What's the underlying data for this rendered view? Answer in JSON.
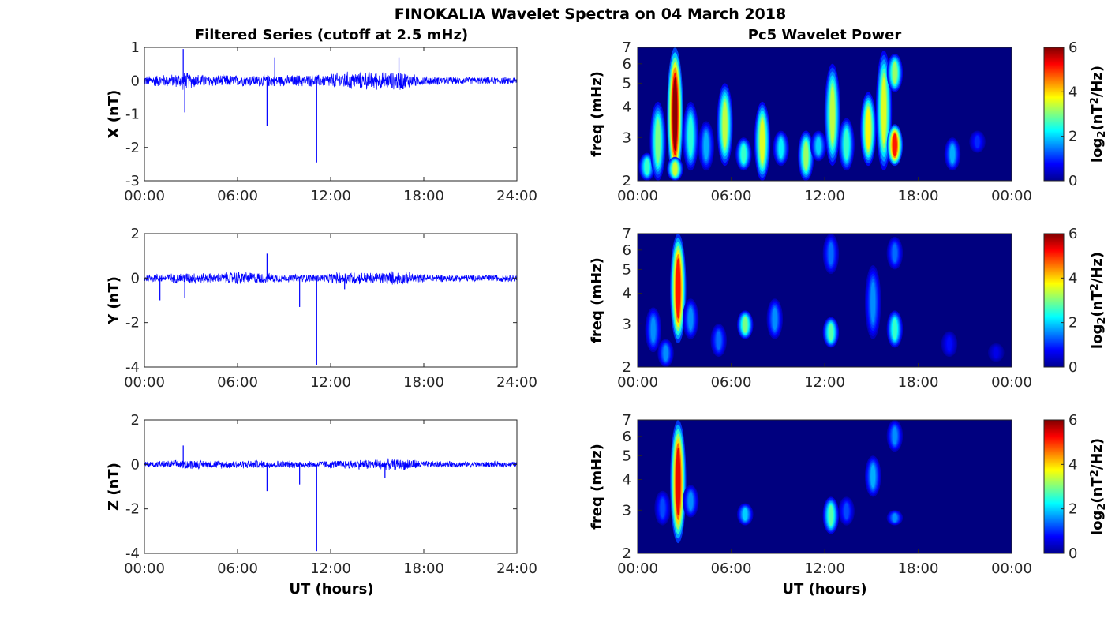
{
  "figure": {
    "title": "FINOKALIA Wavelet Spectra on 04 March 2018",
    "left_title": "Filtered Series (cutoff at 2.5 mHz)",
    "right_title": "Pc5 Wavelet Power",
    "xlabel": "UT (hours)"
  },
  "colormap": {
    "name": "jet",
    "stops": [
      "#00008f",
      "#0000ff",
      "#0080ff",
      "#00ffff",
      "#80ff80",
      "#ffff00",
      "#ff8000",
      "#ff0000",
      "#800000"
    ],
    "background": "#00007f"
  },
  "chart_data": [
    {
      "type": "line",
      "panel": "X",
      "ylabel": "X (nT)",
      "xlim": [
        0,
        24
      ],
      "ylim": [
        -3,
        1
      ],
      "xticks": [
        "00:00",
        "06:00",
        "12:00",
        "18:00",
        "24:00"
      ],
      "yticks": [
        1,
        0,
        -1,
        -2,
        -3
      ],
      "color": "#0000ff",
      "noise_envelope": {
        "x": [
          0,
          1,
          2,
          2.5,
          3,
          4,
          5,
          6,
          7,
          8,
          9,
          10,
          11,
          11.5,
          12,
          13,
          14,
          15,
          16,
          16.5,
          17,
          18,
          19,
          20,
          21,
          22,
          23,
          24
        ],
        "amplitude": [
          0.18,
          0.2,
          0.22,
          0.3,
          0.25,
          0.2,
          0.2,
          0.18,
          0.2,
          0.2,
          0.18,
          0.2,
          0.2,
          0.2,
          0.25,
          0.3,
          0.3,
          0.3,
          0.28,
          0.35,
          0.25,
          0.15,
          0.14,
          0.13,
          0.12,
          0.12,
          0.12,
          0.12
        ]
      },
      "spikes": [
        {
          "x": 2.5,
          "y": 0.95
        },
        {
          "x": 2.6,
          "y": -0.95
        },
        {
          "x": 7.9,
          "y": -1.35
        },
        {
          "x": 8.4,
          "y": 0.7
        },
        {
          "x": 11.1,
          "y": -2.45
        },
        {
          "x": 16.4,
          "y": 0.7
        }
      ]
    },
    {
      "type": "line",
      "panel": "Y",
      "ylabel": "Y (nT)",
      "xlim": [
        0,
        24
      ],
      "ylim": [
        -4,
        2
      ],
      "xticks": [
        "00:00",
        "06:00",
        "12:00",
        "18:00",
        "24:00"
      ],
      "yticks": [
        2,
        0,
        -2,
        -4
      ],
      "color": "#0000ff",
      "noise_envelope": {
        "x": [
          0,
          2,
          3,
          4,
          5,
          6,
          7,
          8,
          9,
          10,
          11,
          12,
          13,
          14,
          15,
          16,
          17,
          18,
          20,
          22,
          24
        ],
        "amplitude": [
          0.2,
          0.25,
          0.3,
          0.25,
          0.25,
          0.35,
          0.3,
          0.25,
          0.2,
          0.2,
          0.2,
          0.25,
          0.35,
          0.3,
          0.3,
          0.35,
          0.3,
          0.2,
          0.18,
          0.18,
          0.18
        ]
      },
      "spikes": [
        {
          "x": 1.0,
          "y": -1.0
        },
        {
          "x": 2.6,
          "y": -0.9
        },
        {
          "x": 7.9,
          "y": 1.1
        },
        {
          "x": 10.0,
          "y": -1.3
        },
        {
          "x": 11.1,
          "y": -3.9
        },
        {
          "x": 12.9,
          "y": -0.5
        }
      ]
    },
    {
      "type": "line",
      "panel": "Z",
      "ylabel": "Z (nT)",
      "xlim": [
        0,
        24
      ],
      "ylim": [
        -4,
        2
      ],
      "xticks": [
        "00:00",
        "06:00",
        "12:00",
        "18:00",
        "24:00"
      ],
      "yticks": [
        2,
        0,
        -2,
        -4
      ],
      "color": "#0000ff",
      "noise_envelope": {
        "x": [
          0,
          2,
          3,
          4,
          6,
          8,
          10,
          12,
          14,
          16,
          17,
          18,
          20,
          22,
          24
        ],
        "amplitude": [
          0.15,
          0.2,
          0.25,
          0.2,
          0.2,
          0.2,
          0.18,
          0.2,
          0.25,
          0.28,
          0.3,
          0.18,
          0.15,
          0.15,
          0.15
        ]
      },
      "spikes": [
        {
          "x": 2.5,
          "y": 0.85
        },
        {
          "x": 7.9,
          "y": -1.2
        },
        {
          "x": 10.0,
          "y": -0.9
        },
        {
          "x": 11.1,
          "y": -3.9
        },
        {
          "x": 15.5,
          "y": -0.6
        }
      ]
    },
    {
      "type": "heatmap",
      "panel": "X",
      "ylabel": "freq (mHz)",
      "xlim": [
        0,
        24
      ],
      "ylim": [
        2,
        7
      ],
      "yscale": "log",
      "xticks": [
        "00:00",
        "06:00",
        "12:00",
        "18:00",
        "00:00"
      ],
      "yticks": [
        7,
        6,
        5,
        4,
        3,
        2
      ],
      "colorbar": {
        "label": "log2(nT2/Hz)",
        "range": [
          0,
          6
        ],
        "ticks": [
          6,
          4,
          2,
          0
        ]
      },
      "blobs": [
        {
          "t": 0.6,
          "f_low": 2.0,
          "f_high": 2.6,
          "peak": 2.6
        },
        {
          "t": 1.3,
          "f_low": 2.0,
          "f_high": 4.2,
          "peak": 3.0
        },
        {
          "t": 2.4,
          "f_low": 2.0,
          "f_high": 7.0,
          "peak": 6.0
        },
        {
          "t": 2.4,
          "f_low": 2.0,
          "f_high": 2.5,
          "peak": 3.5
        },
        {
          "t": 3.4,
          "f_low": 2.2,
          "f_high": 4.2,
          "peak": 2.5
        },
        {
          "t": 4.4,
          "f_low": 2.2,
          "f_high": 3.5,
          "peak": 1.8
        },
        {
          "t": 5.6,
          "f_low": 2.3,
          "f_high": 5.0,
          "peak": 3.4
        },
        {
          "t": 6.8,
          "f_low": 2.2,
          "f_high": 3.0,
          "peak": 2.6
        },
        {
          "t": 8.0,
          "f_low": 2.0,
          "f_high": 4.2,
          "peak": 3.6
        },
        {
          "t": 9.2,
          "f_low": 2.3,
          "f_high": 3.2,
          "peak": 2.2
        },
        {
          "t": 10.8,
          "f_low": 2.0,
          "f_high": 3.2,
          "peak": 3.2
        },
        {
          "t": 11.6,
          "f_low": 2.4,
          "f_high": 3.2,
          "peak": 2.0
        },
        {
          "t": 12.5,
          "f_low": 2.3,
          "f_high": 6.0,
          "peak": 3.4
        },
        {
          "t": 13.4,
          "f_low": 2.2,
          "f_high": 3.6,
          "peak": 2.6
        },
        {
          "t": 14.8,
          "f_low": 2.3,
          "f_high": 4.6,
          "peak": 3.8
        },
        {
          "t": 15.8,
          "f_low": 2.2,
          "f_high": 6.8,
          "peak": 3.6
        },
        {
          "t": 16.5,
          "f_low": 2.3,
          "f_high": 3.4,
          "peak": 5.2
        },
        {
          "t": 16.5,
          "f_low": 4.6,
          "f_high": 6.6,
          "peak": 3.2
        },
        {
          "t": 20.2,
          "f_low": 2.2,
          "f_high": 3.0,
          "peak": 1.8
        },
        {
          "t": 21.8,
          "f_low": 2.6,
          "f_high": 3.2,
          "peak": 1.0
        }
      ]
    },
    {
      "type": "heatmap",
      "panel": "Y",
      "ylabel": "freq (mHz)",
      "xlim": [
        0,
        24
      ],
      "ylim": [
        2,
        7
      ],
      "yscale": "log",
      "xticks": [
        "00:00",
        "06:00",
        "12:00",
        "18:00",
        "00:00"
      ],
      "yticks": [
        7,
        6,
        5,
        4,
        3,
        2
      ],
      "colorbar": {
        "label": "log2(nT2/Hz)",
        "range": [
          0,
          6
        ],
        "ticks": [
          6,
          4,
          2,
          0
        ]
      },
      "blobs": [
        {
          "t": 1.0,
          "f_low": 2.3,
          "f_high": 3.5,
          "peak": 1.6
        },
        {
          "t": 1.8,
          "f_low": 2.0,
          "f_high": 2.6,
          "peak": 1.6
        },
        {
          "t": 2.6,
          "f_low": 2.5,
          "f_high": 7.0,
          "peak": 5.2
        },
        {
          "t": 3.4,
          "f_low": 2.6,
          "f_high": 3.8,
          "peak": 1.6
        },
        {
          "t": 5.2,
          "f_low": 2.2,
          "f_high": 3.0,
          "peak": 1.4
        },
        {
          "t": 6.9,
          "f_low": 2.6,
          "f_high": 3.4,
          "peak": 3.0
        },
        {
          "t": 8.8,
          "f_low": 2.6,
          "f_high": 3.8,
          "peak": 1.6
        },
        {
          "t": 12.4,
          "f_low": 2.4,
          "f_high": 3.2,
          "peak": 2.8
        },
        {
          "t": 12.4,
          "f_low": 4.8,
          "f_high": 7.0,
          "peak": 1.4
        },
        {
          "t": 15.1,
          "f_low": 2.6,
          "f_high": 5.2,
          "peak": 1.6
        },
        {
          "t": 16.5,
          "f_low": 2.4,
          "f_high": 3.4,
          "peak": 2.6
        },
        {
          "t": 16.5,
          "f_low": 5.0,
          "f_high": 6.8,
          "peak": 1.4
        },
        {
          "t": 20.0,
          "f_low": 2.2,
          "f_high": 2.8,
          "peak": 0.8
        },
        {
          "t": 23.0,
          "f_low": 2.1,
          "f_high": 2.5,
          "peak": 0.6
        }
      ]
    },
    {
      "type": "heatmap",
      "panel": "Z",
      "ylabel": "freq (mHz)",
      "xlim": [
        0,
        24
      ],
      "ylim": [
        2,
        7
      ],
      "yscale": "log",
      "xticks": [
        "00:00",
        "06:00",
        "12:00",
        "18:00",
        "00:00"
      ],
      "yticks": [
        7,
        6,
        5,
        4,
        3,
        2
      ],
      "colorbar": {
        "label": "log2(nT2/Hz)",
        "range": [
          0,
          6
        ],
        "ticks": [
          6,
          4,
          2,
          0
        ]
      },
      "blobs": [
        {
          "t": 1.6,
          "f_low": 2.6,
          "f_high": 3.6,
          "peak": 1.2
        },
        {
          "t": 2.6,
          "f_low": 2.2,
          "f_high": 7.0,
          "peak": 5.4
        },
        {
          "t": 3.4,
          "f_low": 2.8,
          "f_high": 3.8,
          "peak": 1.6
        },
        {
          "t": 6.9,
          "f_low": 2.6,
          "f_high": 3.2,
          "peak": 2.0
        },
        {
          "t": 12.4,
          "f_low": 2.4,
          "f_high": 3.4,
          "peak": 2.8
        },
        {
          "t": 13.4,
          "f_low": 2.6,
          "f_high": 3.4,
          "peak": 1.2
        },
        {
          "t": 15.1,
          "f_low": 3.4,
          "f_high": 5.0,
          "peak": 1.8
        },
        {
          "t": 16.5,
          "f_low": 2.6,
          "f_high": 3.0,
          "peak": 1.6
        },
        {
          "t": 16.5,
          "f_low": 5.2,
          "f_high": 7.0,
          "peak": 1.6
        }
      ]
    }
  ]
}
